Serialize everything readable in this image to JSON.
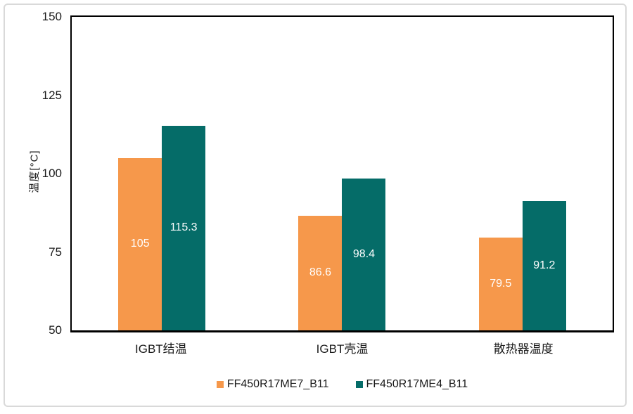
{
  "chart_data": {
    "type": "bar",
    "title": "",
    "ylabel": "温度[°C]",
    "ylim": [
      50,
      150
    ],
    "yticks": [
      150,
      125,
      100,
      75,
      50
    ],
    "categories": [
      "IGBT结温",
      "IGBT壳温",
      "散热器温度"
    ],
    "series": [
      {
        "name": "FF450R17ME7_B11",
        "color": "#F6984B",
        "values": [
          105,
          86.6,
          79.5
        ]
      },
      {
        "name": "FF450R17ME4_B11",
        "color": "#056C68",
        "values": [
          115.3,
          98.4,
          91.2
        ]
      }
    ],
    "grid": false,
    "legend_position": "bottom",
    "value_label_style": "centered-white",
    "frame_border_color": "#D9D9D9",
    "axis_color": "#000000"
  }
}
